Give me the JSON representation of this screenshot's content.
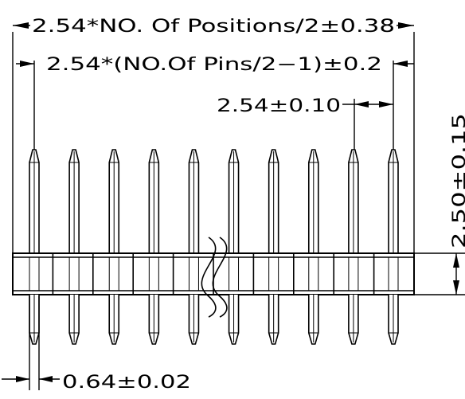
{
  "dimensions": {
    "overall_width": "2.54*NO. Of Positions/2±0.38",
    "pin_span": "2.54*(NO.Of Pins/2−1)±0.2",
    "pitch": "2.54±0.10",
    "body_height": "2.50±0.15",
    "pin_width": "0.64±0.02"
  },
  "drawing": {
    "pin_count": 10,
    "break_symbol": "wavy-break",
    "line_color": "#000000",
    "background": "#ffffff"
  }
}
